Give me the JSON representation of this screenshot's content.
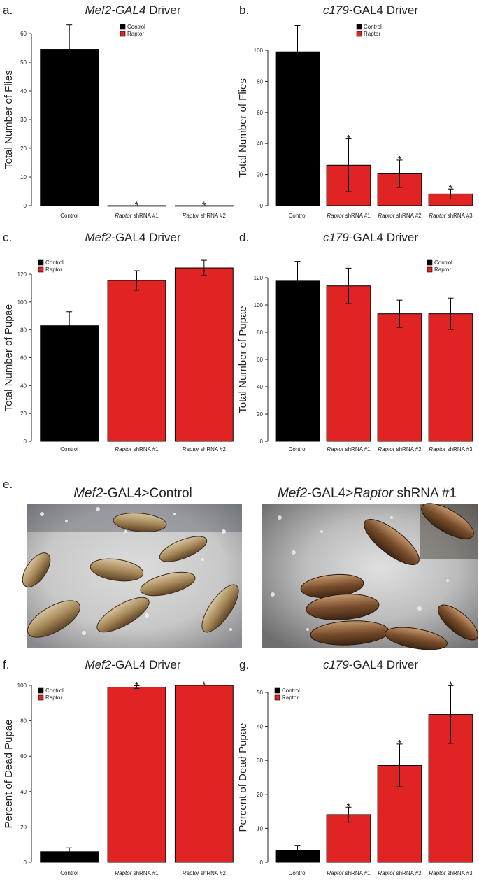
{
  "colors": {
    "control": "#000000",
    "raptor": "#e02424"
  },
  "legend": [
    "Control",
    "Raptor"
  ],
  "panel_e": {
    "label": "e.",
    "left_title_italic": "Mef2",
    "left_title_rest": "-GAL4>Control",
    "right_title_italic": "Mef2",
    "right_title_mid": "-GAL4>",
    "right_title_italic2": "Raptor",
    "right_title_rest": " shRNA #1"
  },
  "chart_data": [
    {
      "panel": "a.",
      "type": "bar",
      "title_italic": "Mef2-GAL4",
      "title_rest": " Driver",
      "ylabel": "Total Number of Flies",
      "ylim": [
        0,
        60
      ],
      "yticks": [
        0,
        10,
        20,
        30,
        40,
        50,
        60
      ],
      "categories": [
        {
          "italic": "",
          "rest": "Control"
        },
        {
          "italic": "Raptor",
          "rest": " shRNA #1"
        },
        {
          "italic": "Raptor",
          "rest": " shRNA #2"
        }
      ],
      "values": [
        54.5,
        0,
        0
      ],
      "errors": [
        8.5,
        0,
        0
      ],
      "series": [
        "control",
        "raptor",
        "raptor"
      ],
      "stars": [
        false,
        true,
        true
      ],
      "legend": "top-right"
    },
    {
      "panel": "b.",
      "type": "bar",
      "title_italic": "c179",
      "title_rest": "-GAL4 Driver",
      "ylabel": "Total Number of Flies",
      "ylim": [
        0,
        100
      ],
      "yticks": [
        0,
        20,
        40,
        60,
        80,
        100
      ],
      "categories": [
        {
          "italic": "",
          "rest": "Control"
        },
        {
          "italic": "Raptor",
          "rest": " shRNA #1"
        },
        {
          "italic": "Raptor",
          "rest": " shRNA #2"
        },
        {
          "italic": "Raptor",
          "rest": " shRNA #3"
        }
      ],
      "values": [
        99,
        26,
        20.5,
        7.5
      ],
      "errors": [
        17,
        17,
        8.8,
        3.2
      ],
      "series": [
        "control",
        "raptor",
        "raptor",
        "raptor"
      ],
      "stars": [
        false,
        true,
        true,
        true
      ],
      "legend": "top-right"
    },
    {
      "panel": "c.",
      "type": "bar",
      "title_italic": "Mef2",
      "title_rest": "-GAL4 Driver",
      "ylabel": "Total Number of Pupae",
      "ylim": [
        0,
        120
      ],
      "yticks": [
        0,
        20,
        40,
        60,
        80,
        100,
        120
      ],
      "categories": [
        {
          "italic": "",
          "rest": "Control"
        },
        {
          "italic": "Raptor",
          "rest": " shRNA #1"
        },
        {
          "italic": "Raptor",
          "rest": " shRNA #2"
        }
      ],
      "values": [
        83,
        115.5,
        124.5
      ],
      "errors": [
        10,
        7,
        5.5
      ],
      "series": [
        "control",
        "raptor",
        "raptor"
      ],
      "stars": [
        false,
        false,
        false
      ],
      "legend": "top-left"
    },
    {
      "panel": "d.",
      "type": "bar",
      "title_italic": "c179",
      "title_rest": "-GAL4 Driver",
      "ylabel": "Total Number of Pupae",
      "ylim": [
        0,
        120
      ],
      "yticks": [
        0,
        20,
        40,
        60,
        80,
        100,
        120
      ],
      "categories": [
        {
          "italic": "",
          "rest": "Control"
        },
        {
          "italic": "Raptor",
          "rest": " shRNA #1"
        },
        {
          "italic": "Raptor",
          "rest": " shRNA #2"
        },
        {
          "italic": "Raptor",
          "rest": " shRNA #3"
        }
      ],
      "values": [
        117.5,
        114,
        93.5,
        93.5
      ],
      "errors": [
        14.5,
        13,
        10,
        11.5
      ],
      "series": [
        "control",
        "raptor",
        "raptor",
        "raptor"
      ],
      "stars": [
        false,
        false,
        false,
        false
      ],
      "legend": "top-right"
    },
    {
      "panel": "f.",
      "type": "bar",
      "title_italic": "Mef2",
      "title_rest": "-GAL4 Driver",
      "ylabel": "Percent of Dead Pupae",
      "ylim": [
        0,
        100
      ],
      "yticks": [
        0,
        20,
        40,
        60,
        80,
        100
      ],
      "categories": [
        {
          "italic": "",
          "rest": "Control"
        },
        {
          "italic": "Raptor",
          "rest": " shRNA #1"
        },
        {
          "italic": "Raptor",
          "rest": " shRNA #2"
        }
      ],
      "values": [
        6,
        99,
        100
      ],
      "errors": [
        2.2,
        0.8,
        0
      ],
      "series": [
        "control",
        "raptor",
        "raptor"
      ],
      "stars": [
        false,
        true,
        true
      ],
      "legend": "top-left"
    },
    {
      "panel": "g.",
      "type": "bar",
      "title_italic": "c179",
      "title_rest": "-GAL4 Driver",
      "ylabel": "Percent of Dead Pupae",
      "ylim": [
        0,
        50
      ],
      "yticks": [
        0,
        10,
        20,
        30,
        40,
        50
      ],
      "categories": [
        {
          "italic": "",
          "rest": "Control"
        },
        {
          "italic": "Raptor",
          "rest": " shRNA #1"
        },
        {
          "italic": "Raptor",
          "rest": " shRNA #2"
        },
        {
          "italic": "Raptor",
          "rest": " shRNA #3"
        }
      ],
      "values": [
        3.5,
        14,
        28.5,
        43.5
      ],
      "errors": [
        1.5,
        2.2,
        6.3,
        8.5
      ],
      "series": [
        "control",
        "raptor",
        "raptor",
        "raptor"
      ],
      "stars": [
        false,
        true,
        true,
        true
      ],
      "legend": "top-left"
    }
  ]
}
